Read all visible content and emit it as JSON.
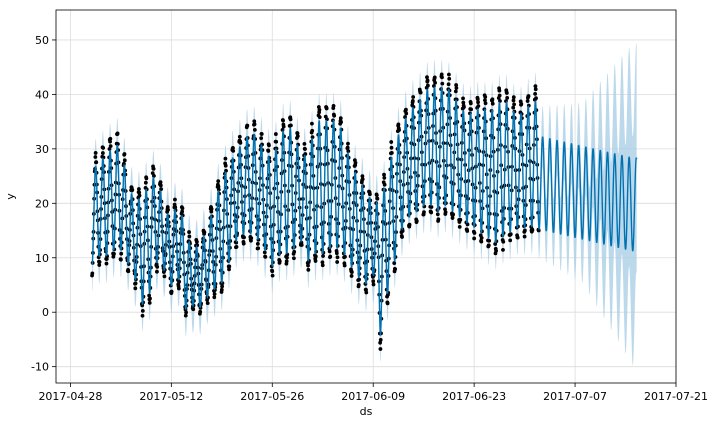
{
  "chart_data": {
    "type": "line",
    "title": "",
    "xlabel": "ds",
    "ylabel": "y",
    "grid": true,
    "x_axis": {
      "type": "date",
      "range": [
        "2017-04-26",
        "2017-07-21"
      ],
      "ticks": [
        "2017-04-28",
        "2017-05-12",
        "2017-05-26",
        "2017-06-09",
        "2017-06-23",
        "2017-07-07",
        "2017-07-21"
      ]
    },
    "y_axis": {
      "range": [
        -13,
        55.5
      ],
      "ticks": [
        -10,
        0,
        10,
        20,
        30,
        40,
        50
      ]
    },
    "observed": {
      "marker": "dot",
      "color": "#000000",
      "start": "2017-05-01",
      "end": "2017-07-01",
      "daily_min": [
        [
          "2017-05-01",
          7.5
        ],
        [
          "2017-05-02",
          9
        ],
        [
          "2017-05-03",
          9
        ],
        [
          "2017-05-04",
          10
        ],
        [
          "2017-05-05",
          10
        ],
        [
          "2017-05-06",
          8
        ],
        [
          "2017-05-07",
          5
        ],
        [
          "2017-05-08",
          0
        ],
        [
          "2017-05-09",
          2
        ],
        [
          "2017-05-10",
          8
        ],
        [
          "2017-05-11",
          7
        ],
        [
          "2017-05-12",
          4
        ],
        [
          "2017-05-13",
          5
        ],
        [
          "2017-05-14",
          -0.5
        ],
        [
          "2017-05-15",
          0.5
        ],
        [
          "2017-05-16",
          0
        ],
        [
          "2017-05-17",
          2
        ],
        [
          "2017-05-18",
          3
        ],
        [
          "2017-05-19",
          4
        ],
        [
          "2017-05-20",
          8
        ],
        [
          "2017-05-21",
          12
        ],
        [
          "2017-05-22",
          13
        ],
        [
          "2017-05-23",
          13
        ],
        [
          "2017-05-24",
          12
        ],
        [
          "2017-05-25",
          10
        ],
        [
          "2017-05-26",
          7
        ],
        [
          "2017-05-27",
          9
        ],
        [
          "2017-05-28",
          9
        ],
        [
          "2017-05-29",
          10
        ],
        [
          "2017-05-30",
          12
        ],
        [
          "2017-05-31",
          8
        ],
        [
          "2017-06-01",
          9
        ],
        [
          "2017-06-02",
          9
        ],
        [
          "2017-06-03",
          10
        ],
        [
          "2017-06-04",
          10
        ],
        [
          "2017-06-05",
          9
        ],
        [
          "2017-06-06",
          7
        ],
        [
          "2017-06-07",
          5
        ],
        [
          "2017-06-08",
          4
        ],
        [
          "2017-06-09",
          6
        ],
        [
          "2017-06-10",
          -6
        ],
        [
          "2017-06-11",
          2
        ],
        [
          "2017-06-12",
          8
        ],
        [
          "2017-06-13",
          14
        ],
        [
          "2017-06-14",
          16
        ],
        [
          "2017-06-15",
          17
        ],
        [
          "2017-06-16",
          18
        ],
        [
          "2017-06-17",
          18
        ],
        [
          "2017-06-18",
          17
        ],
        [
          "2017-06-19",
          18
        ],
        [
          "2017-06-20",
          17
        ],
        [
          "2017-06-21",
          16
        ],
        [
          "2017-06-22",
          15
        ],
        [
          "2017-06-23",
          14
        ],
        [
          "2017-06-24",
          13
        ],
        [
          "2017-06-25",
          12
        ],
        [
          "2017-06-26",
          11
        ],
        [
          "2017-06-27",
          12
        ],
        [
          "2017-06-28",
          13
        ],
        [
          "2017-06-29",
          14
        ],
        [
          "2017-06-30",
          14
        ],
        [
          "2017-07-01",
          14
        ]
      ],
      "daily_max": [
        [
          "2017-05-01",
          28
        ],
        [
          "2017-05-02",
          29
        ],
        [
          "2017-05-03",
          31
        ],
        [
          "2017-05-04",
          32
        ],
        [
          "2017-05-05",
          33
        ],
        [
          "2017-05-06",
          24
        ],
        [
          "2017-05-07",
          22
        ],
        [
          "2017-05-08",
          23
        ],
        [
          "2017-05-09",
          26
        ],
        [
          "2017-05-10",
          27
        ],
        [
          "2017-05-11",
          20
        ],
        [
          "2017-05-12",
          18
        ],
        [
          "2017-05-13",
          22
        ],
        [
          "2017-05-14",
          16
        ],
        [
          "2017-05-15",
          12
        ],
        [
          "2017-05-16",
          14
        ],
        [
          "2017-05-17",
          16
        ],
        [
          "2017-05-18",
          22
        ],
        [
          "2017-05-19",
          26
        ],
        [
          "2017-05-20",
          29
        ],
        [
          "2017-05-21",
          31
        ],
        [
          "2017-05-22",
          33
        ],
        [
          "2017-05-23",
          35
        ],
        [
          "2017-05-24",
          34
        ],
        [
          "2017-05-25",
          31
        ],
        [
          "2017-05-26",
          30
        ],
        [
          "2017-05-27",
          34
        ],
        [
          "2017-05-28",
          37
        ],
        [
          "2017-05-29",
          35
        ],
        [
          "2017-05-30",
          30
        ],
        [
          "2017-05-31",
          31
        ],
        [
          "2017-06-01",
          37
        ],
        [
          "2017-06-02",
          38
        ],
        [
          "2017-06-03",
          37
        ],
        [
          "2017-06-04",
          38
        ],
        [
          "2017-06-05",
          34
        ],
        [
          "2017-06-06",
          28
        ],
        [
          "2017-06-07",
          27
        ],
        [
          "2017-06-08",
          23
        ],
        [
          "2017-06-09",
          22
        ],
        [
          "2017-06-10",
          22
        ],
        [
          "2017-06-11",
          28
        ],
        [
          "2017-06-12",
          33
        ],
        [
          "2017-06-13",
          36
        ],
        [
          "2017-06-14",
          39
        ],
        [
          "2017-06-15",
          40
        ],
        [
          "2017-06-16",
          42
        ],
        [
          "2017-06-17",
          44
        ],
        [
          "2017-06-18",
          43
        ],
        [
          "2017-06-19",
          44
        ],
        [
          "2017-06-20",
          42
        ],
        [
          "2017-06-21",
          40
        ],
        [
          "2017-06-22",
          38
        ],
        [
          "2017-06-23",
          39
        ],
        [
          "2017-06-24",
          40
        ],
        [
          "2017-06-25",
          39
        ],
        [
          "2017-06-26",
          40
        ],
        [
          "2017-06-27",
          42
        ],
        [
          "2017-06-28",
          40
        ],
        [
          "2017-06-29",
          38
        ],
        [
          "2017-06-30",
          39
        ],
        [
          "2017-07-01",
          41
        ]
      ]
    },
    "forecast": {
      "color": "#0072b2",
      "interval_color": "#a6cce6",
      "end": "2017-07-15",
      "daily_swing": [
        [
          "2017-05-01",
          11
        ],
        [
          "2017-06-01",
          12
        ],
        [
          "2017-07-01",
          10
        ],
        [
          "2017-07-15",
          10
        ]
      ],
      "interval_halfwidth": [
        [
          "2017-05-01",
          5
        ],
        [
          "2017-07-01",
          5
        ],
        [
          "2017-07-08",
          8
        ],
        [
          "2017-07-15",
          21
        ]
      ],
      "trend_after_data": [
        [
          "2017-07-02",
          24
        ],
        [
          "2017-07-15",
          20
        ]
      ]
    }
  }
}
